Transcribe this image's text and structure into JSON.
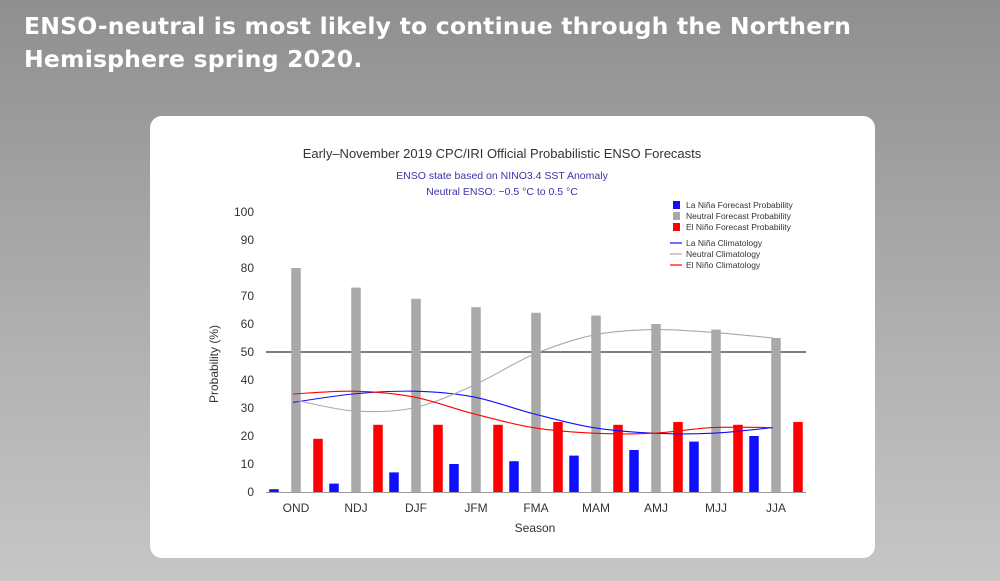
{
  "slide": {
    "title": "ENSO-neutral is most likely to continue through the Northern Hemisphere spring 2020."
  },
  "colors": {
    "la_nina": "#1010ff",
    "neutral": "#a9a9a9",
    "el_nino": "#ff0000",
    "subtitle": "#3a33aa"
  },
  "chart_data": {
    "type": "bar",
    "title": "Early–November 2019 CPC/IRI Official Probabilistic ENSO Forecasts",
    "subtitle_lines": [
      "ENSO state based on NINO3.4 SST Anomaly",
      "Neutral ENSO: −0.5 °C to 0.5 °C"
    ],
    "xlabel": "Season",
    "ylabel": "Probability (%)",
    "ylim": [
      0,
      100
    ],
    "yticks": [
      0,
      10,
      20,
      30,
      40,
      50,
      60,
      70,
      80,
      90,
      100
    ],
    "reference_line": 50,
    "categories": [
      "OND",
      "NDJ",
      "DJF",
      "JFM",
      "FMA",
      "MAM",
      "AMJ",
      "MJJ",
      "JJA"
    ],
    "series": [
      {
        "name": "La Niña Forecast Probability",
        "kind": "bar",
        "color": "#1010ff",
        "values": [
          1,
          3,
          7,
          10,
          11,
          13,
          15,
          18,
          20
        ]
      },
      {
        "name": "Neutral Forecast Probability",
        "kind": "bar",
        "color": "#a9a9a9",
        "values": [
          80,
          73,
          69,
          66,
          64,
          63,
          60,
          58,
          55
        ]
      },
      {
        "name": "El Niño Forecast Probability",
        "kind": "bar",
        "color": "#ff0000",
        "values": [
          19,
          24,
          24,
          24,
          25,
          24,
          25,
          24,
          25
        ]
      },
      {
        "name": "La Niña Climatology",
        "kind": "line",
        "color": "#1010ff",
        "values": [
          32,
          35,
          36,
          34,
          28,
          23,
          21,
          21,
          23
        ]
      },
      {
        "name": "Neutral Climatology",
        "kind": "line",
        "color": "#a9a9a9",
        "values": [
          33,
          29,
          30,
          38,
          49,
          56,
          58,
          57,
          55
        ]
      },
      {
        "name": "El Niño Climatology",
        "kind": "line",
        "color": "#ff0000",
        "values": [
          35,
          36,
          34,
          28,
          23,
          21,
          21,
          23,
          23
        ]
      }
    ],
    "legend_position": "top-right"
  }
}
